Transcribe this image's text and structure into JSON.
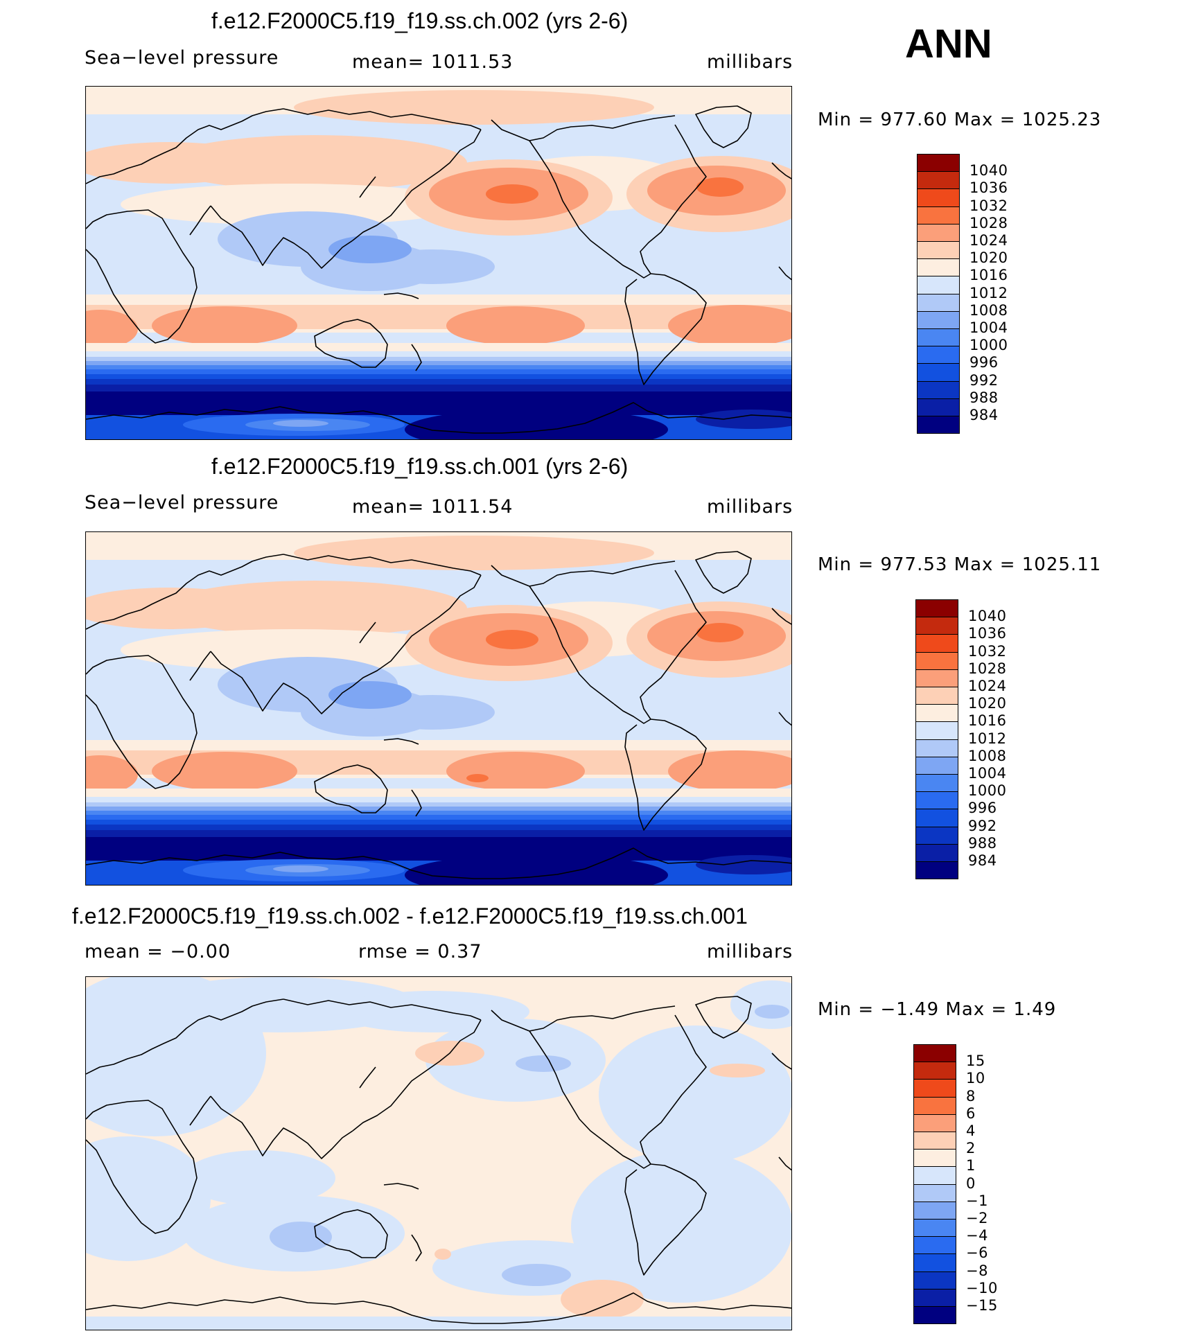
{
  "season": "ANN",
  "colors": {
    "abs": [
      "#000080",
      "#0a1fa6",
      "#0b36c3",
      "#1251e0",
      "#2a6bf0",
      "#4a86f2",
      "#7ea6f3",
      "#b0c9f7",
      "#d7e6fb",
      "#fdeee0",
      "#fdd0b6",
      "#fb9f7a",
      "#f9733f",
      "#ef4a1b",
      "#c42a0e",
      "#8b0000"
    ],
    "diff": [
      "#000080",
      "#0a1fa6",
      "#0b36c3",
      "#1251e0",
      "#2a6bf0",
      "#4a86f2",
      "#7ea6f3",
      "#b0c9f7",
      "#d7e6fb",
      "#fdeee0",
      "#fdd0b6",
      "#fb9f7a",
      "#f9733f",
      "#ef4a1b",
      "#c42a0e",
      "#8b0000"
    ]
  },
  "panels": [
    {
      "title": "f.e12.F2000C5.f19_f19.ss.ch.002 (yrs 2-6)",
      "left_label": "Sea−level pressure",
      "center_label": "mean=  1011.53",
      "right_label": "millibars",
      "minmax": "Min  =  977.60  Max  =  1025.23",
      "colorbar_labels": [
        "1040",
        "1036",
        "1032",
        "1028",
        "1024",
        "1020",
        "1016",
        "1012",
        "1008",
        "1004",
        "1000",
        "996",
        "992",
        "988",
        "984"
      ],
      "kind": "abs"
    },
    {
      "title": "f.e12.F2000C5.f19_f19.ss.ch.001 (yrs 2-6)",
      "left_label": "Sea−level pressure",
      "center_label": "mean=  1011.54",
      "right_label": "millibars",
      "minmax": "Min  =  977.53  Max  =  1025.11",
      "colorbar_labels": [
        "1040",
        "1036",
        "1032",
        "1028",
        "1024",
        "1020",
        "1016",
        "1012",
        "1008",
        "1004",
        "1000",
        "996",
        "992",
        "988",
        "984"
      ],
      "kind": "abs"
    },
    {
      "title": "f.e12.F2000C5.f19_f19.ss.ch.002 - f.e12.F2000C5.f19_f19.ss.ch.001",
      "left_label": "mean  =    −0.00",
      "center_label": "rmse  =      0.37",
      "right_label": "millibars",
      "minmax": "Min  =    −1.49  Max  =      1.49",
      "colorbar_labels": [
        "15",
        "10",
        "8",
        "6",
        "4",
        "2",
        "1",
        "0",
        "−1",
        "−2",
        "−4",
        "−6",
        "−8",
        "−10",
        "−15"
      ],
      "kind": "diff"
    }
  ]
}
